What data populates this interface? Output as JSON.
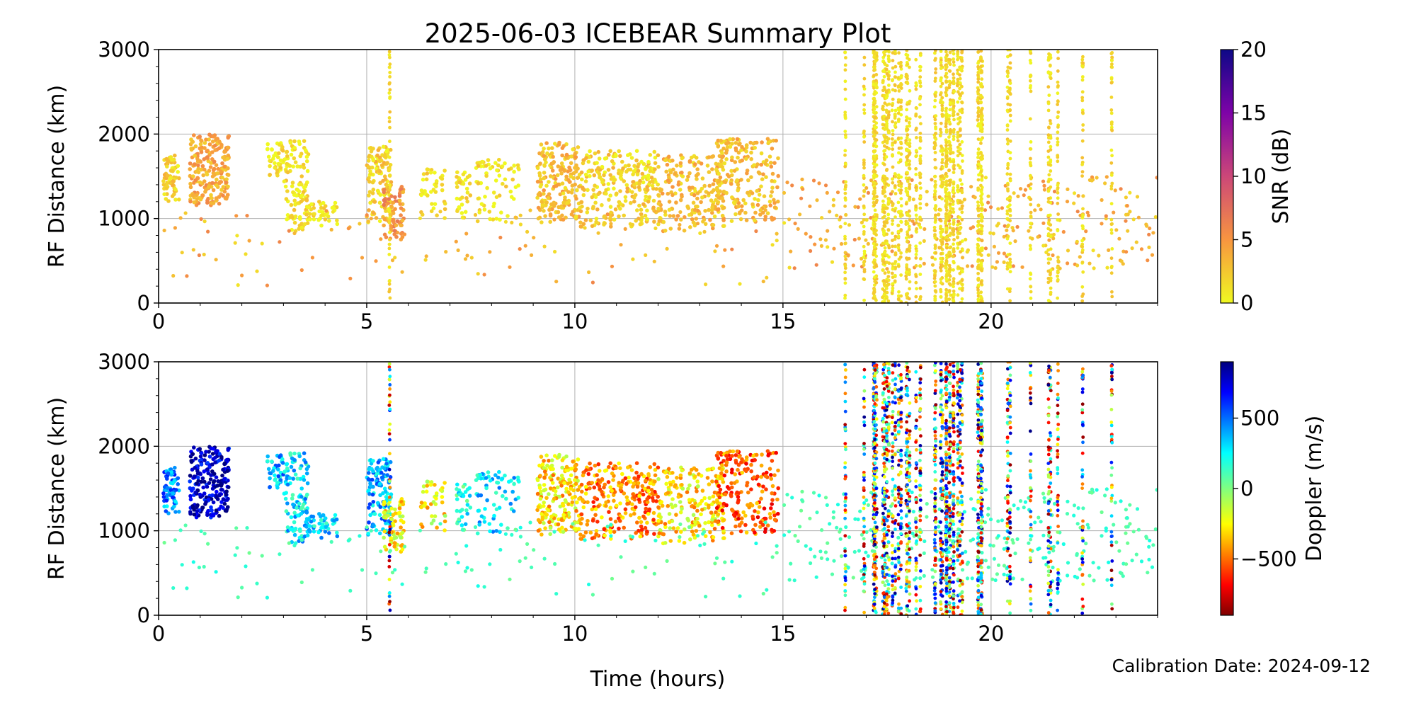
{
  "title": "2025-06-03 ICEBEAR Summary Plot",
  "xlabel": "Time (hours)",
  "footer": "Calibration Date: 2024-09-12",
  "chart_data": [
    {
      "type": "scatter",
      "ylabel": "RF Distance (km)",
      "colorbar_label": "SNR (dB)",
      "colorbar_ticks": [
        0,
        5,
        10,
        15,
        20
      ],
      "colorbar_tick_labels": [
        "0",
        "5",
        "10",
        "15",
        "20"
      ],
      "colorbar_range": [
        0,
        20
      ],
      "colormap": "plasma_r",
      "xlim": [
        0,
        24
      ],
      "ylim": [
        0,
        3000
      ],
      "x_ticks": [
        0,
        5,
        10,
        15,
        20
      ],
      "x_tick_labels": [
        "0",
        "5",
        "10",
        "15",
        "20"
      ],
      "y_ticks": [
        0,
        1000,
        2000,
        3000
      ],
      "y_tick_labels": [
        "0",
        "1000",
        "2000",
        "3000"
      ],
      "grid": true
    },
    {
      "type": "scatter",
      "ylabel": "RF Distance (km)",
      "colorbar_label": "Doppler (m/s)",
      "colorbar_ticks": [
        500,
        0,
        -500
      ],
      "colorbar_tick_labels": [
        "500",
        "0",
        "−500"
      ],
      "colorbar_range": [
        -900,
        900
      ],
      "colormap": "jet_r",
      "xlim": [
        0,
        24
      ],
      "ylim": [
        0,
        3000
      ],
      "x_ticks": [
        0,
        5,
        10,
        15,
        20
      ],
      "x_tick_labels": [
        "0",
        "5",
        "10",
        "15",
        "20"
      ],
      "y_ticks": [
        0,
        1000,
        2000,
        3000
      ],
      "y_tick_labels": [
        "0",
        "1000",
        "2000",
        "3000"
      ],
      "grid": true
    }
  ],
  "clusters": [
    {
      "t": [
        0.1,
        0.5
      ],
      "r": [
        1200,
        1750
      ],
      "snr": 2,
      "dop": 450,
      "n": 70
    },
    {
      "t": [
        0.75,
        1.7
      ],
      "r": [
        1150,
        2000
      ],
      "snr": 4,
      "dop": 780,
      "n": 220
    },
    {
      "t": [
        2.6,
        3.0
      ],
      "r": [
        1500,
        1900
      ],
      "snr": 1,
      "dop": 380,
      "n": 40
    },
    {
      "t": [
        3.0,
        3.6
      ],
      "r": [
        850,
        1950
      ],
      "snr": 1,
      "dop": 300,
      "n": 110
    },
    {
      "t": [
        3.5,
        4.3
      ],
      "r": [
        900,
        1200
      ],
      "snr": 1,
      "dop": 320,
      "n": 50
    },
    {
      "t": [
        5.0,
        5.6
      ],
      "r": [
        950,
        1850
      ],
      "snr": 2,
      "dop": 380,
      "n": 120
    },
    {
      "t": [
        5.4,
        5.9
      ],
      "r": [
        700,
        1400
      ],
      "snr": 5,
      "dop": -250,
      "n": 70
    },
    {
      "t": [
        6.3,
        6.9
      ],
      "r": [
        1000,
        1600
      ],
      "snr": 1,
      "dop": -250,
      "n": 40
    },
    {
      "t": [
        7.1,
        7.5
      ],
      "r": [
        1000,
        1550
      ],
      "snr": 1,
      "dop": 200,
      "n": 35
    },
    {
      "t": [
        7.6,
        8.7
      ],
      "r": [
        950,
        1700
      ],
      "snr": 1,
      "dop": 300,
      "n": 70
    },
    {
      "t": [
        9.1,
        10.1
      ],
      "r": [
        950,
        1900
      ],
      "snr": 3,
      "dop": -300,
      "n": 190
    },
    {
      "t": [
        10.1,
        12.0
      ],
      "r": [
        900,
        1800
      ],
      "snr": 2,
      "dop": -450,
      "n": 260
    },
    {
      "t": [
        12.0,
        13.6
      ],
      "r": [
        850,
        1750
      ],
      "snr": 3,
      "dop": -300,
      "n": 200
    },
    {
      "t": [
        13.4,
        14.9
      ],
      "r": [
        950,
        1950
      ],
      "snr": 3,
      "dop": -520,
      "n": 200
    }
  ],
  "scatter_sparse": {
    "t": [
      15.0,
      24.0
    ],
    "r": [
      400,
      1500
    ],
    "snr": 5,
    "dop": 120,
    "n": 300
  },
  "scatter_scattered": {
    "t": [
      0.1,
      14.9
    ],
    "r": [
      200,
      1100
    ],
    "snr": 5,
    "dop": 120,
    "n": 120
  },
  "stripes": [
    {
      "t": [
        17.15,
        19.8
      ],
      "n": 38
    },
    {
      "t": [
        20.35,
        20.5
      ],
      "n": 2
    },
    {
      "t": [
        20.95,
        21.05
      ],
      "n": 1
    },
    {
      "t": [
        21.35,
        21.65
      ],
      "n": 3
    },
    {
      "t": [
        22.2,
        22.3
      ],
      "n": 1
    },
    {
      "t": [
        22.9,
        22.95
      ],
      "n": 1
    },
    {
      "t": [
        5.55,
        5.7
      ],
      "n": 1
    },
    {
      "t": [
        16.5,
        16.5
      ],
      "n": 1
    },
    {
      "t": [
        16.95,
        16.95
      ],
      "n": 1
    }
  ]
}
